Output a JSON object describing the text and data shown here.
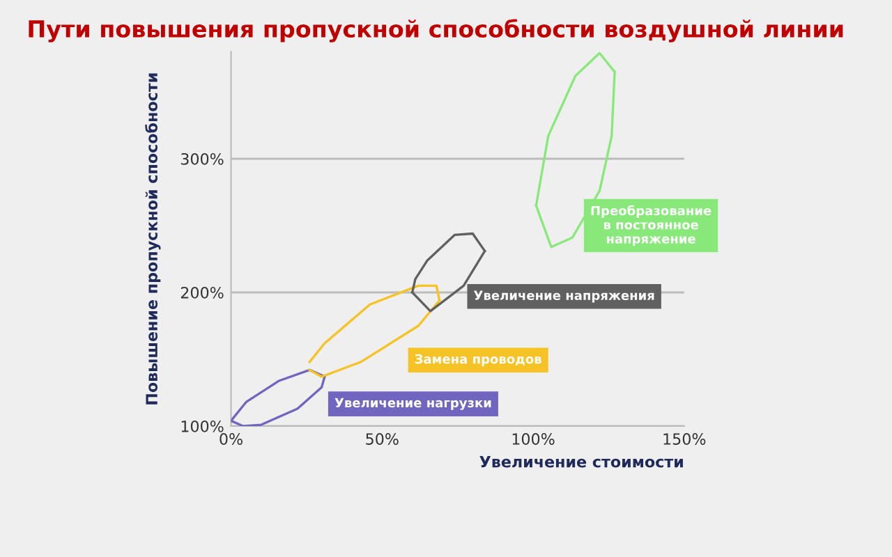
{
  "chart_data": {
    "type": "line",
    "title": "Пути повышения пропускной способности воздушной линии",
    "xlabel": "Увеличение стоимости",
    "ylabel": "Повышение пропускной способности",
    "xlim": [
      0,
      150
    ],
    "xticks": [
      {
        "value": 0,
        "label": "0%"
      },
      {
        "value": 50,
        "label": "50%"
      },
      {
        "value": 100,
        "label": "100%"
      },
      {
        "value": 150,
        "label": "150%"
      }
    ],
    "ylim": [
      100,
      380
    ],
    "yticks": [
      {
        "value": 100,
        "label": "100%"
      },
      {
        "value": 200,
        "label": "200%"
      },
      {
        "value": 300,
        "label": "300%"
      }
    ],
    "grid": "y",
    "legend": false,
    "marker": "none",
    "line_style": "solid",
    "series": [
      {
        "name": "Увеличение нагрузки",
        "color": "#7066c0",
        "x": [
          0,
          5,
          16,
          26,
          31
        ],
        "values": [
          104,
          118,
          134,
          142,
          137
        ]
      },
      {
        "color": "#7066c0",
        "x": [
          0,
          4,
          10,
          22,
          30,
          31
        ],
        "values": [
          104,
          100,
          101,
          113,
          129,
          137
        ]
      },
      {
        "name": "Замена проводов",
        "color": "#f5c325",
        "x": [
          26,
          31,
          46,
          62,
          68,
          69
        ],
        "values": [
          148,
          162,
          191,
          205,
          205,
          194
        ]
      },
      {
        "color": "#f5c325",
        "x": [
          26,
          30,
          43,
          62,
          69
        ],
        "values": [
          142,
          137,
          148,
          175,
          194
        ]
      },
      {
        "name": "Увеличение напряжения",
        "color": "#606060",
        "x": [
          60,
          61,
          65,
          74,
          80,
          84
        ],
        "values": [
          200,
          210,
          224,
          243,
          244,
          231
        ]
      },
      {
        "color": "#606060",
        "x": [
          60,
          66,
          77,
          84
        ],
        "values": [
          200,
          186,
          205,
          231
        ]
      },
      {
        "color": "#88e87a",
        "x": [
          101,
          105,
          114,
          122,
          127
        ],
        "values": [
          265,
          317,
          362,
          379,
          365
        ]
      },
      {
        "name": "Преобразование\nв постоянное\nнапряжение",
        "color": "#88e87a",
        "x": [
          101,
          106,
          113,
          122,
          126,
          127
        ],
        "values": [
          265,
          234,
          241,
          276,
          317,
          365
        ]
      }
    ]
  }
}
